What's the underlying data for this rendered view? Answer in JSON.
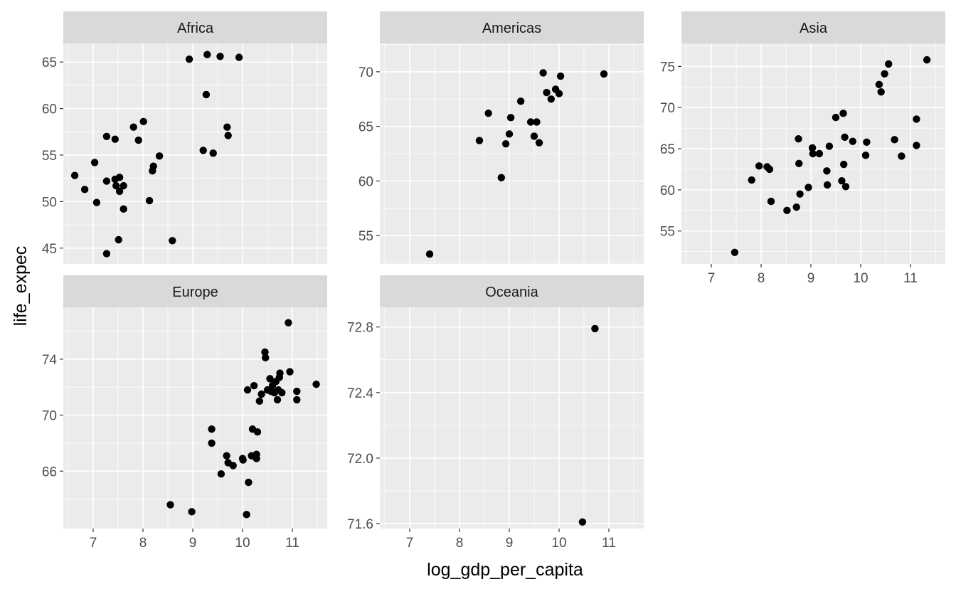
{
  "chart_data": {
    "type": "scatter",
    "xlabel": "log_gdp_per_capita",
    "ylabel": "life_expec",
    "xlim": [
      6.4,
      11.7
    ],
    "x_ticks": [
      7,
      8,
      9,
      10,
      11
    ],
    "x_tick_labels": [
      "7",
      "8",
      "9",
      "10",
      "11"
    ],
    "grid": true,
    "facets": [
      {
        "name": "Africa",
        "ylim": [
          43.3,
          67.0
        ],
        "y_ticks": [
          45,
          50,
          55,
          60,
          65
        ],
        "y_tick_labels": [
          "45",
          "50",
          "55",
          "60",
          "65"
        ],
        "points": [
          {
            "x": 6.63,
            "y": 52.8
          },
          {
            "x": 6.83,
            "y": 51.3
          },
          {
            "x": 7.03,
            "y": 54.2
          },
          {
            "x": 7.07,
            "y": 49.9
          },
          {
            "x": 7.27,
            "y": 57.0
          },
          {
            "x": 7.27,
            "y": 52.2
          },
          {
            "x": 7.27,
            "y": 44.4
          },
          {
            "x": 7.44,
            "y": 56.7
          },
          {
            "x": 7.44,
            "y": 52.4
          },
          {
            "x": 7.46,
            "y": 51.7
          },
          {
            "x": 7.51,
            "y": 45.9
          },
          {
            "x": 7.53,
            "y": 52.6
          },
          {
            "x": 7.53,
            "y": 51.1
          },
          {
            "x": 7.61,
            "y": 51.7
          },
          {
            "x": 7.61,
            "y": 49.2
          },
          {
            "x": 7.81,
            "y": 58.0
          },
          {
            "x": 7.91,
            "y": 56.6
          },
          {
            "x": 8.01,
            "y": 58.6
          },
          {
            "x": 8.13,
            "y": 50.1
          },
          {
            "x": 8.19,
            "y": 53.3
          },
          {
            "x": 8.21,
            "y": 53.8
          },
          {
            "x": 8.33,
            "y": 54.9
          },
          {
            "x": 8.59,
            "y": 45.8
          },
          {
            "x": 8.93,
            "y": 65.3
          },
          {
            "x": 9.21,
            "y": 55.5
          },
          {
            "x": 9.27,
            "y": 61.5
          },
          {
            "x": 9.29,
            "y": 65.8
          },
          {
            "x": 9.41,
            "y": 55.2
          },
          {
            "x": 9.55,
            "y": 65.6
          },
          {
            "x": 9.69,
            "y": 58.0
          },
          {
            "x": 9.71,
            "y": 57.1
          },
          {
            "x": 9.93,
            "y": 65.5
          }
        ]
      },
      {
        "name": "Americas",
        "ylim": [
          52.4,
          72.6
        ],
        "y_ticks": [
          55,
          60,
          65,
          70
        ],
        "y_tick_labels": [
          "55",
          "60",
          "65",
          "70"
        ],
        "points": [
          {
            "x": 7.4,
            "y": 53.3
          },
          {
            "x": 8.4,
            "y": 63.7
          },
          {
            "x": 8.58,
            "y": 66.2
          },
          {
            "x": 8.84,
            "y": 60.3
          },
          {
            "x": 8.93,
            "y": 63.4
          },
          {
            "x": 9.0,
            "y": 64.3
          },
          {
            "x": 9.03,
            "y": 65.8
          },
          {
            "x": 9.23,
            "y": 67.3
          },
          {
            "x": 9.43,
            "y": 65.4
          },
          {
            "x": 9.5,
            "y": 64.1
          },
          {
            "x": 9.55,
            "y": 65.4
          },
          {
            "x": 9.6,
            "y": 63.5
          },
          {
            "x": 9.68,
            "y": 69.9
          },
          {
            "x": 9.75,
            "y": 68.1
          },
          {
            "x": 9.84,
            "y": 67.5
          },
          {
            "x": 9.93,
            "y": 68.4
          },
          {
            "x": 10.0,
            "y": 68.0
          },
          {
            "x": 10.03,
            "y": 69.6
          },
          {
            "x": 10.9,
            "y": 69.8
          }
        ]
      },
      {
        "name": "Asia",
        "ylim": [
          51.0,
          77.8
        ],
        "y_ticks": [
          55,
          60,
          65,
          70,
          75
        ],
        "y_tick_labels": [
          "55",
          "60",
          "65",
          "70",
          "75"
        ],
        "points": [
          {
            "x": 7.47,
            "y": 52.4
          },
          {
            "x": 7.81,
            "y": 61.2
          },
          {
            "x": 7.96,
            "y": 62.9
          },
          {
            "x": 8.12,
            "y": 62.8
          },
          {
            "x": 8.17,
            "y": 62.5
          },
          {
            "x": 8.2,
            "y": 58.6
          },
          {
            "x": 8.52,
            "y": 57.5
          },
          {
            "x": 8.71,
            "y": 57.9
          },
          {
            "x": 8.75,
            "y": 66.2
          },
          {
            "x": 8.76,
            "y": 63.2
          },
          {
            "x": 8.78,
            "y": 59.5
          },
          {
            "x": 8.95,
            "y": 60.3
          },
          {
            "x": 9.03,
            "y": 65.1
          },
          {
            "x": 9.04,
            "y": 64.4
          },
          {
            "x": 9.17,
            "y": 64.4
          },
          {
            "x": 9.32,
            "y": 62.3
          },
          {
            "x": 9.33,
            "y": 60.6
          },
          {
            "x": 9.37,
            "y": 65.3
          },
          {
            "x": 9.5,
            "y": 68.8
          },
          {
            "x": 9.62,
            "y": 61.1
          },
          {
            "x": 9.65,
            "y": 69.3
          },
          {
            "x": 9.66,
            "y": 63.1
          },
          {
            "x": 9.68,
            "y": 66.4
          },
          {
            "x": 9.7,
            "y": 60.4
          },
          {
            "x": 9.84,
            "y": 65.9
          },
          {
            "x": 10.1,
            "y": 64.2
          },
          {
            "x": 10.12,
            "y": 65.8
          },
          {
            "x": 10.37,
            "y": 72.8
          },
          {
            "x": 10.41,
            "y": 71.9
          },
          {
            "x": 10.48,
            "y": 74.1
          },
          {
            "x": 10.56,
            "y": 75.3
          },
          {
            "x": 10.68,
            "y": 66.1
          },
          {
            "x": 10.82,
            "y": 64.1
          },
          {
            "x": 11.12,
            "y": 68.6
          },
          {
            "x": 11.12,
            "y": 65.4
          },
          {
            "x": 11.33,
            "y": 75.8
          }
        ]
      },
      {
        "name": "Europe",
        "ylim": [
          61.9,
          77.7
        ],
        "y_ticks": [
          66,
          70,
          74
        ],
        "y_tick_labels": [
          "66",
          "70",
          "74"
        ],
        "points": [
          {
            "x": 8.55,
            "y": 63.6
          },
          {
            "x": 8.98,
            "y": 63.1
          },
          {
            "x": 9.38,
            "y": 69.0
          },
          {
            "x": 9.38,
            "y": 68.0
          },
          {
            "x": 9.57,
            "y": 65.8
          },
          {
            "x": 9.68,
            "y": 67.1
          },
          {
            "x": 9.71,
            "y": 66.6
          },
          {
            "x": 9.81,
            "y": 66.4
          },
          {
            "x": 10.0,
            "y": 66.9
          },
          {
            "x": 10.01,
            "y": 66.8
          },
          {
            "x": 10.08,
            "y": 62.9
          },
          {
            "x": 10.1,
            "y": 71.8
          },
          {
            "x": 10.12,
            "y": 65.2
          },
          {
            "x": 10.18,
            "y": 67.1
          },
          {
            "x": 10.2,
            "y": 69.0
          },
          {
            "x": 10.23,
            "y": 72.1
          },
          {
            "x": 10.28,
            "y": 67.2
          },
          {
            "x": 10.28,
            "y": 66.9
          },
          {
            "x": 10.3,
            "y": 68.8
          },
          {
            "x": 10.34,
            "y": 71.0
          },
          {
            "x": 10.38,
            "y": 71.5
          },
          {
            "x": 10.45,
            "y": 74.5
          },
          {
            "x": 10.46,
            "y": 74.1
          },
          {
            "x": 10.5,
            "y": 71.8
          },
          {
            "x": 10.55,
            "y": 72.6
          },
          {
            "x": 10.57,
            "y": 71.7
          },
          {
            "x": 10.6,
            "y": 72.1
          },
          {
            "x": 10.64,
            "y": 71.6
          },
          {
            "x": 10.67,
            "y": 72.4
          },
          {
            "x": 10.7,
            "y": 71.1
          },
          {
            "x": 10.72,
            "y": 71.8
          },
          {
            "x": 10.74,
            "y": 72.7
          },
          {
            "x": 10.75,
            "y": 73.0
          },
          {
            "x": 10.79,
            "y": 71.6
          },
          {
            "x": 10.92,
            "y": 76.6
          },
          {
            "x": 10.95,
            "y": 73.1
          },
          {
            "x": 11.09,
            "y": 71.7
          },
          {
            "x": 11.09,
            "y": 71.1
          },
          {
            "x": 11.48,
            "y": 72.2
          }
        ]
      },
      {
        "name": "Oceania",
        "ylim": [
          71.57,
          72.92
        ],
        "y_ticks": [
          71.6,
          72.0,
          72.4,
          72.8
        ],
        "y_tick_labels": [
          "71.6",
          "72.0",
          "72.4",
          "72.8"
        ],
        "points": [
          {
            "x": 10.47,
            "y": 71.61
          },
          {
            "x": 10.72,
            "y": 72.79
          }
        ]
      }
    ]
  }
}
